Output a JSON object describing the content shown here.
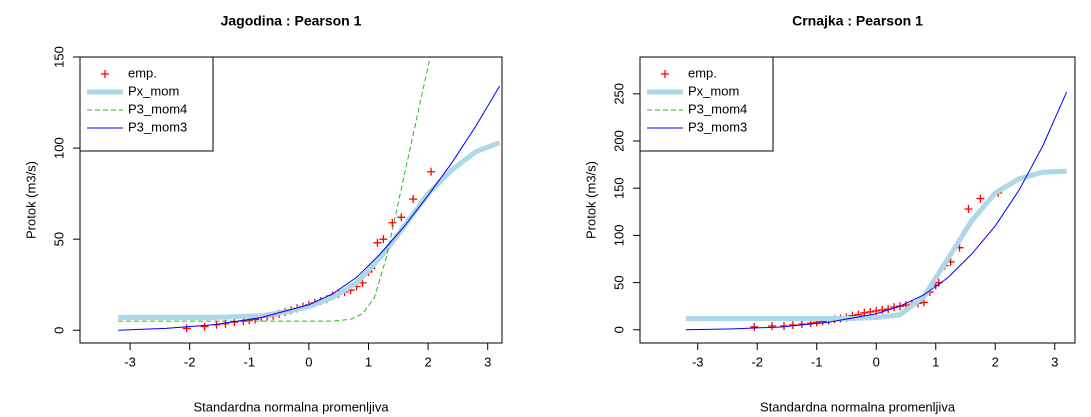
{
  "chart_data": [
    {
      "type": "line",
      "title": "Jagodina : Pearson 1",
      "x_label": "Standardna normalna promenljiva",
      "y_label": "Protok (m3/s)",
      "xlim": [
        -3.84,
        3.24
      ],
      "ylim": [
        -7,
        150
      ],
      "xticks": [
        -3,
        -2,
        -1,
        0,
        1,
        2,
        3
      ],
      "yticks": [
        0,
        50,
        100,
        150
      ],
      "legend": "top-left",
      "series": [
        {
          "name": "emp.",
          "color": "#ff0000",
          "style": "points",
          "x": [
            -2.05,
            -1.75,
            -1.55,
            -1.4,
            -1.25,
            -1.1,
            -1.0,
            -0.9,
            -0.8,
            -0.7,
            -0.6,
            -0.5,
            -0.4,
            -0.3,
            -0.2,
            -0.1,
            0,
            0.1,
            0.2,
            0.3,
            0.4,
            0.5,
            0.6,
            0.7,
            0.8,
            0.9,
            1.0,
            1.05,
            1.15,
            1.25,
            1.4,
            1.55,
            1.75,
            2.05
          ],
          "values": [
            1,
            2,
            3,
            3.5,
            4.5,
            5,
            5.5,
            6,
            7,
            7.5,
            8,
            9,
            10,
            11,
            12,
            13,
            14,
            15,
            16,
            17,
            19,
            20,
            21,
            22,
            24,
            26,
            32,
            34,
            48,
            50,
            59,
            62,
            72,
            87
          ]
        },
        {
          "name": "Px_mom",
          "color": "#add8e6",
          "style": "thick",
          "x": [
            -3.2,
            -2.8,
            -2.4,
            -2.0,
            -1.6,
            -1.2,
            -0.8,
            -0.4,
            0,
            0.4,
            0.8,
            1.2,
            1.6,
            2.0,
            2.4,
            2.8,
            3.2
          ],
          "values": [
            7,
            7,
            7,
            7,
            7,
            7.5,
            8,
            10,
            13,
            18,
            26,
            40,
            57,
            75,
            88,
            98,
            103
          ]
        },
        {
          "name": "P3_mom4",
          "color": "#22bb22",
          "style": "dashed",
          "x": [
            -3.2,
            -2.4,
            -1.6,
            -0.8,
            0,
            0.4,
            0.7,
            0.9,
            1.1,
            1.3,
            1.5,
            1.7,
            1.9,
            2.05
          ],
          "values": [
            5,
            5,
            5,
            5,
            5,
            5,
            6,
            9,
            18,
            40,
            70,
            100,
            130,
            152
          ]
        },
        {
          "name": "P3_mom3",
          "color": "#0000ff",
          "style": "line",
          "x": [
            -3.2,
            -2.4,
            -1.6,
            -0.8,
            0,
            0.4,
            0.8,
            1.2,
            1.6,
            2.0,
            2.4,
            2.8,
            3.2
          ],
          "values": [
            0,
            1,
            3,
            7,
            14,
            20,
            29,
            42,
            57,
            74,
            92,
            112,
            134
          ]
        }
      ]
    },
    {
      "type": "line",
      "title": "Crnajka : Pearson 1",
      "x_label": "Standardna normalna promenljiva",
      "y_label": "Protok (m3/s)",
      "xlim": [
        -3.97,
        3.34
      ],
      "ylim": [
        -14,
        289
      ],
      "xticks": [
        -3,
        -2,
        -1,
        0,
        1,
        2,
        3
      ],
      "yticks": [
        0,
        50,
        100,
        150,
        200,
        250
      ],
      "legend": "top-left",
      "series": [
        {
          "name": "emp.",
          "color": "#ff0000",
          "style": "points",
          "x": [
            -2.05,
            -1.75,
            -1.55,
            -1.4,
            -1.25,
            -1.1,
            -1.0,
            -0.9,
            -0.8,
            -0.7,
            -0.6,
            -0.5,
            -0.4,
            -0.3,
            -0.2,
            -0.1,
            0,
            0.1,
            0.2,
            0.3,
            0.4,
            0.5,
            0.6,
            0.7,
            0.8,
            0.9,
            1.0,
            1.05,
            1.15,
            1.25,
            1.4,
            1.55,
            1.75,
            2.05
          ],
          "values": [
            3,
            4,
            4,
            5,
            6,
            7,
            8,
            9,
            10,
            11,
            12,
            13,
            15,
            16,
            18,
            19,
            20,
            21,
            22,
            24,
            25,
            26,
            27,
            28,
            29,
            40,
            47,
            50,
            68,
            72,
            87,
            128,
            139,
            145
          ]
        },
        {
          "name": "Px_mom",
          "color": "#add8e6",
          "style": "thick",
          "x": [
            -3.2,
            -2.8,
            -2.4,
            -2.0,
            -1.6,
            -1.2,
            -0.8,
            -0.4,
            0,
            0.4,
            0.8,
            1.2,
            1.6,
            2.0,
            2.4,
            2.8,
            3.2
          ],
          "values": [
            12,
            12,
            12,
            12,
            12,
            12,
            12,
            12,
            13,
            16,
            35,
            75,
            115,
            145,
            160,
            167,
            168
          ]
        },
        {
          "name": "P3_mom4",
          "color": "#22bb22",
          "style": "dashed",
          "x": [],
          "values": []
        },
        {
          "name": "P3_mom3",
          "color": "#0000ff",
          "style": "line",
          "x": [
            -3.2,
            -2.4,
            -1.6,
            -0.8,
            0,
            0.4,
            0.8,
            1.2,
            1.6,
            2.0,
            2.4,
            2.8,
            3.2
          ],
          "values": [
            0,
            1,
            3,
            8,
            17,
            25,
            37,
            55,
            80,
            110,
            148,
            195,
            252
          ]
        }
      ]
    }
  ]
}
